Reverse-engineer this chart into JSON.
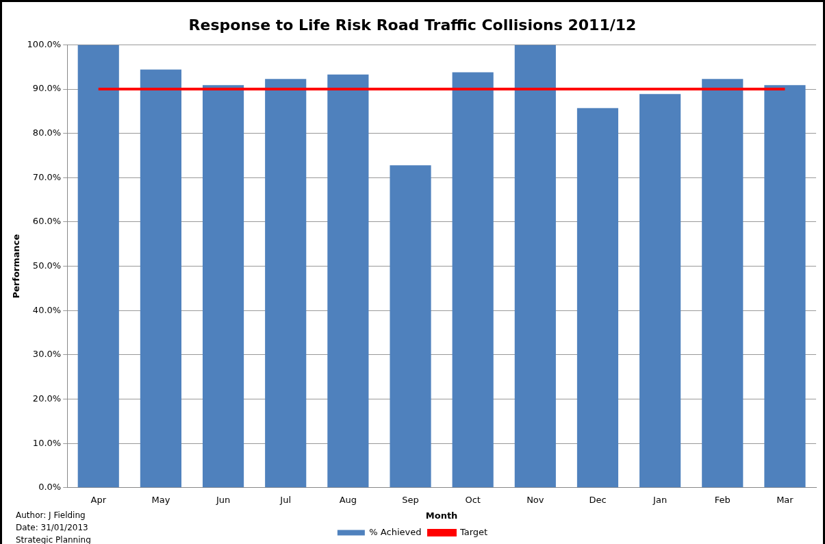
{
  "chart_data": {
    "type": "bar",
    "title": "Response to Life Risk Road Traffic Collisions 2011/12",
    "xlabel": "Month",
    "ylabel": "Performance",
    "categories": [
      "Apr",
      "May",
      "Jun",
      "Jul",
      "Aug",
      "Sep",
      "Oct",
      "Nov",
      "Dec",
      "Jan",
      "Feb",
      "Mar"
    ],
    "series": [
      {
        "name": "% Achieved",
        "color": "#4f81bd",
        "values": [
          100,
          94.4,
          90.9,
          92.3,
          93.3,
          72.8,
          93.8,
          100,
          85.7,
          88.9,
          92.3,
          90.9
        ]
      },
      {
        "name": "Target",
        "type": "line",
        "color": "#ff0000",
        "values": [
          90,
          90,
          90,
          90,
          90,
          90,
          90,
          90,
          90,
          90,
          90,
          90
        ]
      }
    ],
    "ylim": [
      0,
      100
    ],
    "yticks": [
      {
        "value": 0,
        "label": "0.0%"
      },
      {
        "value": 10,
        "label": "10.0%"
      },
      {
        "value": 20,
        "label": "20.0%"
      },
      {
        "value": 30,
        "label": "30.0%"
      },
      {
        "value": 40,
        "label": "40.0%"
      },
      {
        "value": 50,
        "label": "50.0%"
      },
      {
        "value": 60,
        "label": "60.0%"
      },
      {
        "value": 70,
        "label": "70.0%"
      },
      {
        "value": 80,
        "label": "80.0%"
      },
      {
        "value": 90,
        "label": "90.0%"
      },
      {
        "value": 100,
        "label": "100.0%"
      }
    ],
    "grid": "y",
    "legend": "bottom",
    "marker": "none",
    "annotations": [
      "Author: J Fielding",
      "Date: 31/01/2013",
      "Strategic Planning"
    ]
  }
}
